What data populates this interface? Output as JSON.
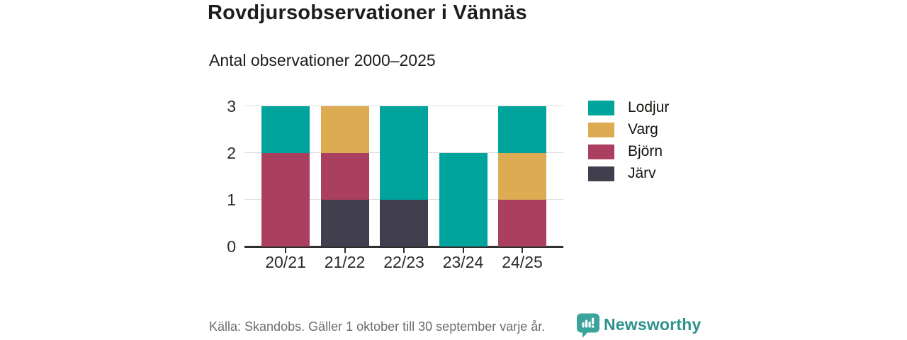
{
  "header": {
    "title": "Rovdjursobservationer i Vännäs",
    "subtitle": "Antal observationer 2000–2025"
  },
  "chart_data": {
    "type": "bar",
    "stacked": true,
    "title": "Rovdjursobservationer i Vännäs",
    "subtitle": "Antal observationer 2000–2025",
    "categories": [
      "20/21",
      "21/22",
      "22/23",
      "23/24",
      "24/25"
    ],
    "series": [
      {
        "name": "Lodjur",
        "color": "#00a49c",
        "values": [
          1,
          0,
          2,
          2,
          1
        ]
      },
      {
        "name": "Varg",
        "color": "#dcab52",
        "values": [
          0,
          1,
          0,
          0,
          1
        ]
      },
      {
        "name": "Björn",
        "color": "#ab3f60",
        "values": [
          2,
          1,
          0,
          0,
          1
        ]
      },
      {
        "name": "Järv",
        "color": "#413e4e",
        "values": [
          0,
          1,
          1,
          0,
          0
        ]
      }
    ],
    "stack_order_bottom_to_top": [
      "Järv",
      "Björn",
      "Varg",
      "Lodjur"
    ],
    "totals_per_category": [
      3,
      3,
      3,
      2,
      3
    ],
    "yticks": [
      0,
      1,
      2,
      3
    ],
    "ylim": [
      0,
      3
    ],
    "xlabel": "",
    "ylabel": "",
    "grid": true,
    "legend_position": "right"
  },
  "footer": {
    "source": "Källa: Skandobs. Gäller 1 oktober till 30 september varje år.",
    "brand": "Newsworthy"
  },
  "colors": {
    "brand_teal": "#2d938c",
    "logo_bubble": "#3aa39b",
    "axis": "#2f2f2f",
    "gridline": "#dcdcdc",
    "text_dark": "#1d1d1b",
    "text_muted": "#6c6c6c"
  }
}
